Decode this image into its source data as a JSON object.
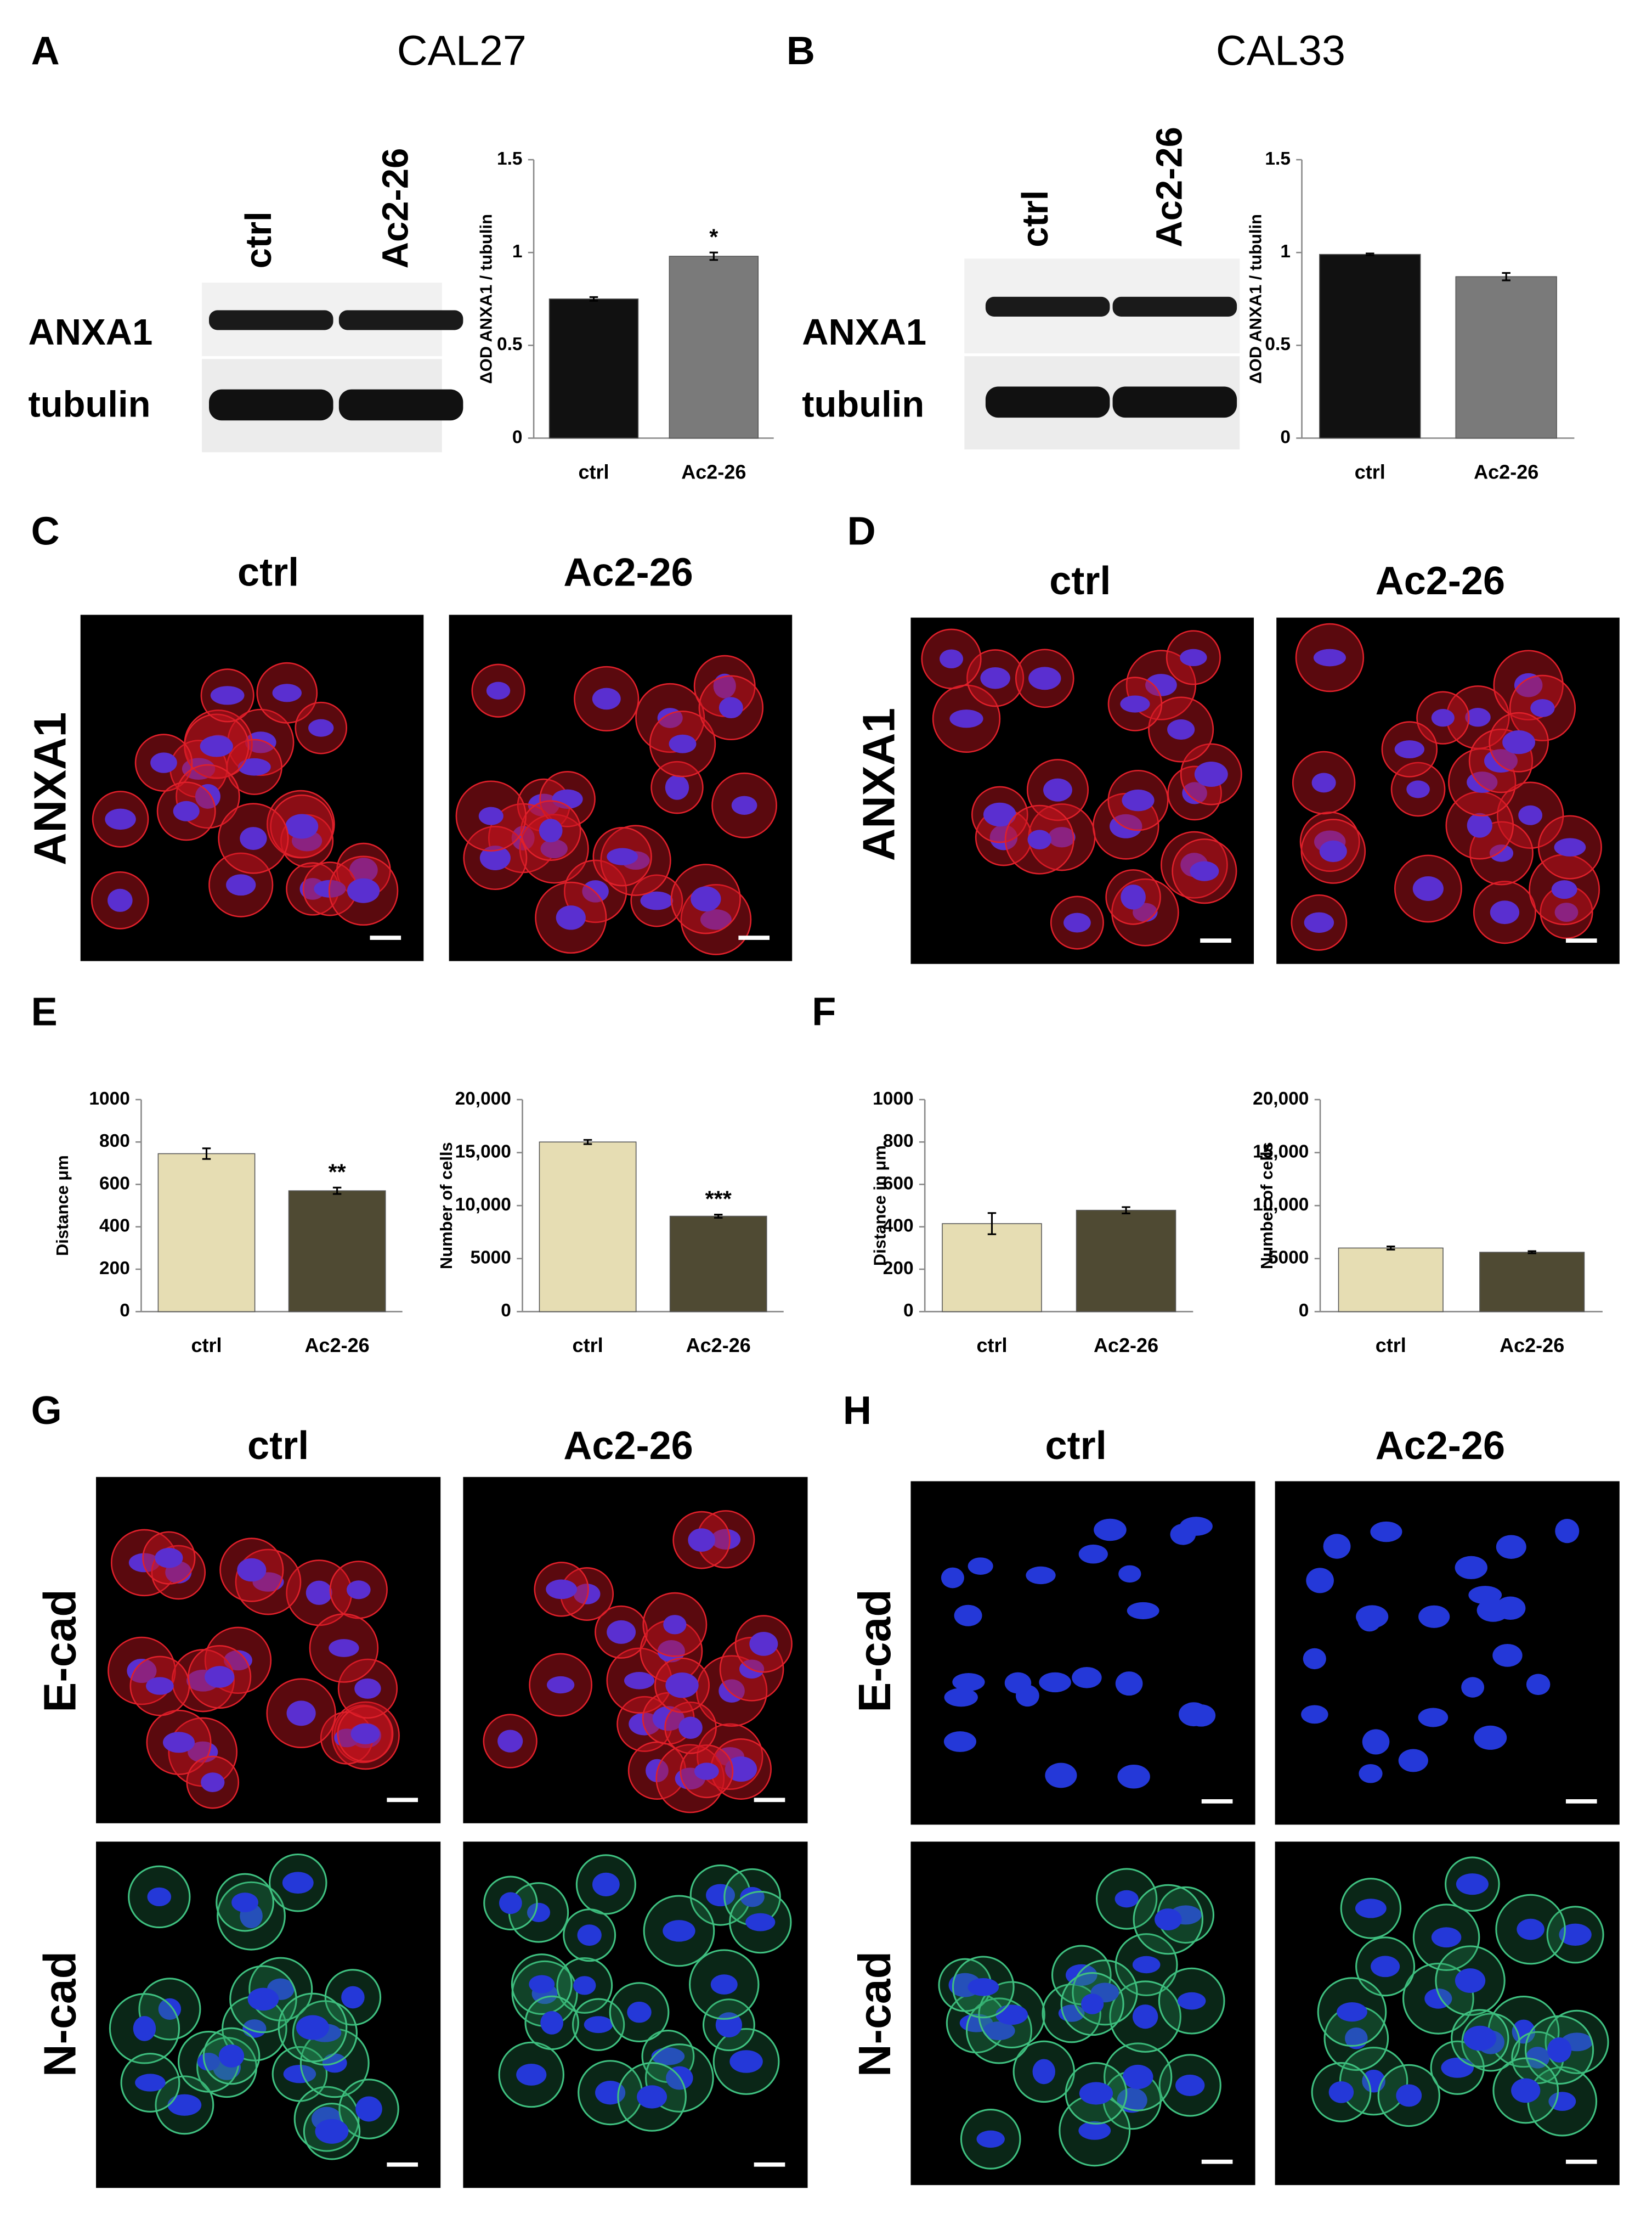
{
  "figure": {
    "labels": [
      "A",
      "B",
      "C",
      "D",
      "E",
      "F",
      "G",
      "H"
    ],
    "blots": [
      {
        "title": "CAL27",
        "lanes": [
          "ctrl",
          "Ac2-26"
        ],
        "rows": [
          "ANXA1",
          "tubulin"
        ]
      },
      {
        "title": "CAL33",
        "lanes": [
          "ctrl",
          "Ac2-26"
        ],
        "rows": [
          "ANXA1",
          "tubulin"
        ]
      }
    ],
    "micrographs": [
      {
        "columns": [
          "ctrl",
          "Ac2-26"
        ],
        "rows": [
          "ANXA1"
        ]
      },
      {
        "columns": [
          "ctrl",
          "Ac2-26"
        ],
        "rows": [
          "ANXA1"
        ]
      },
      {
        "columns": [
          "ctrl",
          "Ac2-26"
        ],
        "rows": [
          "E-cad",
          "N-cad"
        ]
      },
      {
        "columns": [
          "ctrl",
          "Ac2-26"
        ],
        "rows": [
          "E-cad",
          "N-cad"
        ]
      }
    ]
  },
  "chart_data": [
    {
      "type": "bar",
      "y_label": "ΔOD ANXA1 / tubulin",
      "categories": [
        "ctrl",
        "Ac2-26"
      ],
      "values": [
        0.75,
        0.98
      ],
      "errors": [
        0.01,
        0.02
      ],
      "significance": [
        null,
        "*"
      ],
      "colors": [
        "#111111",
        "#7a7a7a"
      ],
      "ylim": [
        0,
        1.5
      ],
      "yticks": [
        0,
        0.5,
        1,
        1.5
      ]
    },
    {
      "type": "bar",
      "y_label": "ΔOD ANXA1 / tubulin",
      "categories": [
        "ctrl",
        "Ac2-26"
      ],
      "values": [
        0.99,
        0.87
      ],
      "errors": [
        0.005,
        0.02
      ],
      "significance": [
        null,
        null
      ],
      "colors": [
        "#111111",
        "#7a7a7a"
      ],
      "ylim": [
        0,
        1.5
      ],
      "yticks": [
        0,
        0.5,
        1,
        1.5
      ]
    },
    {
      "type": "bar",
      "y_label": "Distance μm",
      "categories": [
        "ctrl",
        "Ac2-26"
      ],
      "values": [
        745,
        570
      ],
      "errors": [
        25,
        15
      ],
      "significance": [
        null,
        "**"
      ],
      "colors": [
        "#e6ddb3",
        "#4f4a33"
      ],
      "ylim": [
        0,
        1000
      ],
      "yticks": [
        0,
        200,
        400,
        600,
        800,
        1000
      ]
    },
    {
      "type": "bar",
      "y_label": "Number of cells",
      "categories": [
        "ctrl",
        "Ac2-26"
      ],
      "values": [
        16000,
        9000
      ],
      "errors": [
        200,
        150
      ],
      "significance": [
        null,
        "***"
      ],
      "colors": [
        "#e6ddb3",
        "#4f4a33"
      ],
      "ylim": [
        0,
        20000
      ],
      "yticks": [
        0,
        5000,
        {
          "value": 10000,
          "label": "10,000"
        },
        {
          "value": 15000,
          "label": "15,000"
        },
        {
          "value": 20000,
          "label": "20,000"
        }
      ]
    },
    {
      "type": "bar",
      "y_label": "Distance in μm",
      "categories": [
        "ctrl",
        "Ac2-26"
      ],
      "values": [
        415,
        478
      ],
      "errors": [
        50,
        15
      ],
      "significance": [
        null,
        null
      ],
      "colors": [
        "#e6ddb3",
        "#4f4a33"
      ],
      "ylim": [
        0,
        1000
      ],
      "yticks": [
        0,
        200,
        400,
        600,
        800,
        1000
      ]
    },
    {
      "type": "bar",
      "y_label": "Number of cells",
      "categories": [
        "ctrl",
        "Ac2-26"
      ],
      "values": [
        6000,
        5600
      ],
      "errors": [
        150,
        100
      ],
      "significance": [
        null,
        null
      ],
      "colors": [
        "#e6ddb3",
        "#4f4a33"
      ],
      "ylim": [
        0,
        20000
      ],
      "yticks": [
        0,
        5000,
        {
          "value": 10000,
          "label": "10,000"
        },
        {
          "value": 15000,
          "label": "15,000"
        },
        {
          "value": 20000,
          "label": "20,000"
        }
      ]
    }
  ]
}
